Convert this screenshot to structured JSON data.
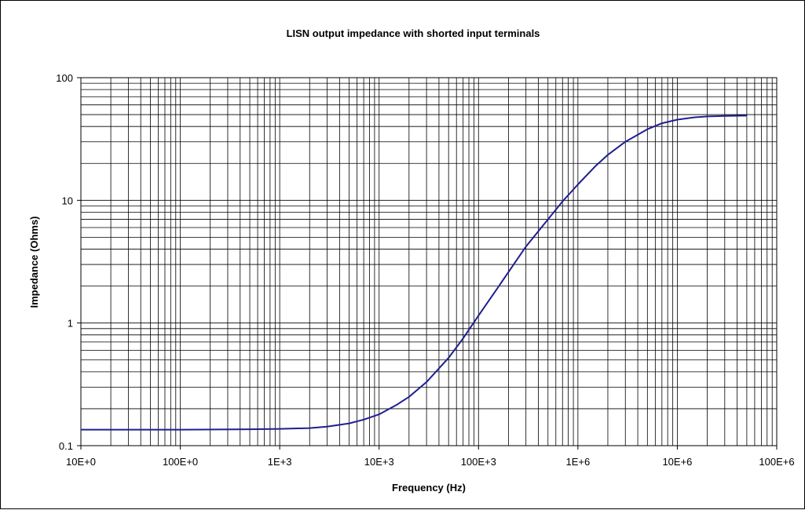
{
  "chart_data": {
    "type": "line",
    "title": "LISN output impedance with shorted input terminals",
    "xlabel": "Frequency (Hz)",
    "ylabel": "Impedance (Ohms)",
    "x_scale": "log",
    "y_scale": "log",
    "xlim": [
      10,
      100000000
    ],
    "ylim": [
      0.1,
      100
    ],
    "grid": true,
    "x_ticks": [
      {
        "value": 10,
        "label": "10E+0"
      },
      {
        "value": 100,
        "label": "100E+0"
      },
      {
        "value": 1000,
        "label": "1E+3"
      },
      {
        "value": 10000,
        "label": "10E+3"
      },
      {
        "value": 100000,
        "label": "100E+3"
      },
      {
        "value": 1000000,
        "label": "1E+6"
      },
      {
        "value": 10000000,
        "label": "10E+6"
      },
      {
        "value": 100000000,
        "label": "100E+6"
      }
    ],
    "y_ticks": [
      {
        "value": 0.1,
        "label": "0.1"
      },
      {
        "value": 1,
        "label": "1"
      },
      {
        "value": 10,
        "label": "10"
      },
      {
        "value": 100,
        "label": "100"
      }
    ],
    "series": [
      {
        "color": "#1f1f8f",
        "points": [
          [
            10,
            0.135
          ],
          [
            100,
            0.135
          ],
          [
            500,
            0.136
          ],
          [
            1000,
            0.137
          ],
          [
            2000,
            0.139
          ],
          [
            3000,
            0.143
          ],
          [
            5000,
            0.152
          ],
          [
            7000,
            0.163
          ],
          [
            10000,
            0.18
          ],
          [
            15000,
            0.215
          ],
          [
            20000,
            0.25
          ],
          [
            30000,
            0.33
          ],
          [
            50000,
            0.52
          ],
          [
            70000,
            0.75
          ],
          [
            100000,
            1.15
          ],
          [
            150000,
            1.85
          ],
          [
            200000,
            2.6
          ],
          [
            300000,
            4.2
          ],
          [
            500000,
            7.0
          ],
          [
            700000,
            9.8
          ],
          [
            1000000,
            13.5
          ],
          [
            1500000,
            19
          ],
          [
            2000000,
            23.5
          ],
          [
            3000000,
            30
          ],
          [
            5000000,
            38
          ],
          [
            7000000,
            42.5
          ],
          [
            10000000,
            45.5
          ],
          [
            15000000,
            47.5
          ],
          [
            20000000,
            48.3
          ],
          [
            30000000,
            48.8
          ],
          [
            50000000,
            49
          ]
        ]
      }
    ]
  }
}
